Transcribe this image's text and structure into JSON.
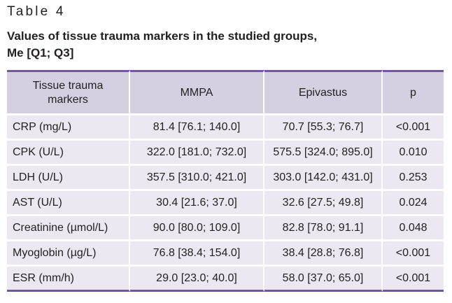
{
  "table_label": "Table 4",
  "caption": {
    "line1": "Values of tissue trauma markers in the studied groups,",
    "line2": "Me [Q1; Q3]"
  },
  "header": {
    "marker_line1": "Tissue trauma",
    "marker_line2": "markers",
    "mmpa": "MMPA",
    "epivastus": "Epivastus",
    "p": "p"
  },
  "rows": [
    {
      "marker": "CRP (mg/L)",
      "mmpa": "81.4 [76.1; 140.0]",
      "epivastus": "70.7 [55.3; 76.7]",
      "p": "<0.001"
    },
    {
      "marker": "CPK (U/L)",
      "mmpa": "322.0 [181.0; 732.0]",
      "epivastus": "575.5 [324.0; 895.0]",
      "p": "0.010"
    },
    {
      "marker": "LDH (U/L)",
      "mmpa": "357.5 [310.0; 421.0]",
      "epivastus": "303.0 [142.0; 431.0]",
      "p": "0.253"
    },
    {
      "marker": "AST (U/L)",
      "mmpa": "30.4 [21.6; 37.0]",
      "epivastus": "32.6 [27.5; 49.8]",
      "p": "0.024"
    },
    {
      "marker": "Creatinine (µmol/L)",
      "mmpa": "90.0 [80.0; 109.0]",
      "epivastus": "82.8 [78.0; 91.1]",
      "p": "0.048"
    },
    {
      "marker": "Myoglobin (µg/L)",
      "mmpa": "76.8 [38.4; 154.0]",
      "epivastus": "38.4 [28.8; 76.8]",
      "p": "<0.001"
    },
    {
      "marker": "ESR (mm/h)",
      "mmpa": "29.0 [23.0; 40.0]",
      "epivastus": "58.0 [37.0; 65.0]",
      "p": "<0.001"
    }
  ]
}
